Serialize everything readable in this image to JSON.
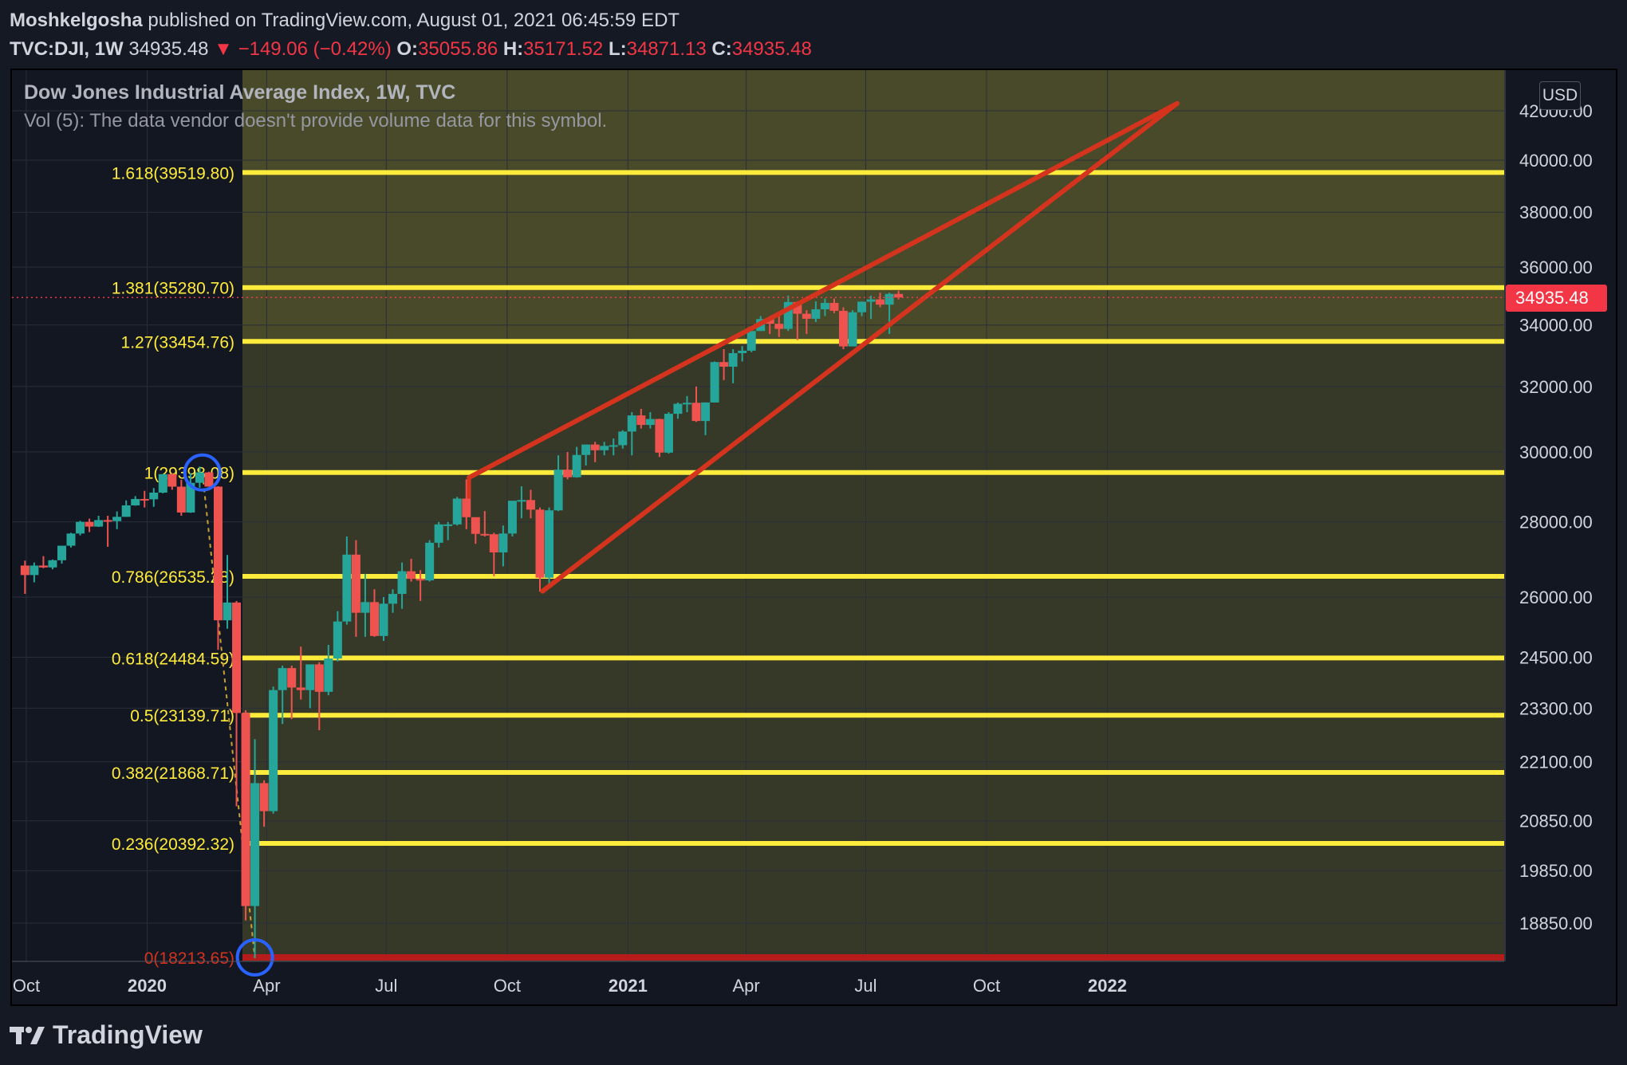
{
  "header": {
    "author": "Moshkelgosha",
    "published": "published on TradingView.com, August 01, 2021 06:45:59 EDT",
    "symbol": "TVC:DJI, 1W",
    "last": "34935.48",
    "change": "−149.06 (−0.42%)",
    "o_label": "O:",
    "o": "35055.86",
    "h_label": "H:",
    "h": "35171.52",
    "l_label": "L:",
    "l": "34871.13",
    "c_label": "C:",
    "c": "34935.48"
  },
  "legend": {
    "title": "Dow Jones Industrial Average Index, 1W, TVC",
    "volume_note": "Vol (5): The data vendor doesn't provide volume data for this symbol."
  },
  "currency": "USD",
  "last_price_tag": "34935.48",
  "footer": {
    "brand": "TradingView",
    "logo_icon": "tradingview-logo-icon"
  },
  "colors": {
    "up": "#26a69a",
    "down": "#ef5350",
    "fib": "#ffeb3b",
    "trend": "#d4331d",
    "zero": "#b71c1c",
    "circle": "#2962ff"
  },
  "chart_data": {
    "type": "candlestick",
    "title": "Dow Jones Industrial Average Index, 1W, TVC",
    "x_ticks": [
      "Oct",
      "2020",
      "Apr",
      "Jul",
      "Oct",
      "2021",
      "Apr",
      "Jul",
      "Oct",
      "2022"
    ],
    "y_ticks": [
      "42000.00",
      "40000.00",
      "38000.00",
      "36000.00",
      "34000.00",
      "32000.00",
      "30000.00",
      "28000.00",
      "26000.00",
      "24500.00",
      "23300.00",
      "22100.00",
      "20850.00",
      "19850.00",
      "18850.00"
    ],
    "y_scale": "log",
    "fibonacci": [
      {
        "label": "0(18213.65)",
        "price": 18213.65
      },
      {
        "label": "0.236(20392.32)",
        "price": 20392.32
      },
      {
        "label": "0.382(21868.71)",
        "price": 21868.71
      },
      {
        "label": "0.5(23139.71)",
        "price": 23139.71
      },
      {
        "label": "0.618(24484.59)",
        "price": 24484.59
      },
      {
        "label": "0.786(26535.28)",
        "price": 26535.28
      },
      {
        "label": "1(29398.08)",
        "price": 29398.08
      },
      {
        "label": "1.27(33454.76)",
        "price": 33454.76
      },
      {
        "label": "1.381(35280.70)",
        "price": 35280.7
      },
      {
        "label": "1.618(39519.80)",
        "price": 39519.8
      }
    ],
    "candles": [
      [
        "2019-09-30",
        26820,
        26950,
        26080,
        26570
      ],
      [
        "2019-10-07",
        26570,
        26900,
        26380,
        26820
      ],
      [
        "2019-10-14",
        26820,
        27070,
        26750,
        26770
      ],
      [
        "2019-10-21",
        26770,
        26980,
        26720,
        26960
      ],
      [
        "2019-10-28",
        26960,
        27350,
        26870,
        27350
      ],
      [
        "2019-11-04",
        27350,
        27700,
        27300,
        27680
      ],
      [
        "2019-11-11",
        27680,
        28030,
        27630,
        28000
      ],
      [
        "2019-11-18",
        28000,
        28090,
        27720,
        27870
      ],
      [
        "2019-11-25",
        27870,
        28170,
        27860,
        28050
      ],
      [
        "2019-12-02",
        28050,
        28170,
        27320,
        28020
      ],
      [
        "2019-12-09",
        28020,
        28290,
        27800,
        28140
      ],
      [
        "2019-12-16",
        28140,
        28600,
        28140,
        28460
      ],
      [
        "2019-12-23",
        28460,
        28720,
        28450,
        28640
      ],
      [
        "2019-12-30",
        28640,
        28870,
        28400,
        28630
      ],
      [
        "2020-01-06",
        28630,
        28950,
        28420,
        28820
      ],
      [
        "2020-01-13",
        28820,
        29350,
        28800,
        29350
      ],
      [
        "2020-01-20",
        29350,
        29370,
        28900,
        28990
      ],
      [
        "2020-01-27",
        28990,
        29190,
        28170,
        28260
      ],
      [
        "2020-02-03",
        28260,
        29380,
        28250,
        29100
      ],
      [
        "2020-02-10",
        29100,
        29570,
        28960,
        29400
      ],
      [
        "2020-02-17",
        29400,
        29420,
        28990,
        28990
      ],
      [
        "2020-02-24",
        28990,
        29000,
        24680,
        25410
      ],
      [
        "2020-03-02",
        25410,
        27100,
        25200,
        25860
      ],
      [
        "2020-03-09",
        25860,
        25900,
        21150,
        23190
      ],
      [
        "2020-03-16",
        23190,
        23250,
        18900,
        19170
      ],
      [
        "2020-03-23",
        19170,
        22600,
        18210,
        21640
      ],
      [
        "2020-03-30",
        21640,
        21700,
        20730,
        21050
      ],
      [
        "2020-04-06",
        21050,
        23800,
        21000,
        23720
      ],
      [
        "2020-04-13",
        23720,
        24300,
        22940,
        24240
      ],
      [
        "2020-04-20",
        24240,
        24300,
        23050,
        23780
      ],
      [
        "2020-04-27",
        23780,
        24760,
        23500,
        23720
      ],
      [
        "2020-05-04",
        23720,
        24300,
        23300,
        24330
      ],
      [
        "2020-05-11",
        24330,
        24380,
        22800,
        23680
      ],
      [
        "2020-05-18",
        23680,
        24800,
        23600,
        24470
      ],
      [
        "2020-05-25",
        24470,
        25640,
        24400,
        25380
      ],
      [
        "2020-06-01",
        25380,
        27600,
        25300,
        27110
      ],
      [
        "2020-06-08",
        27110,
        27500,
        25000,
        25600
      ],
      [
        "2020-06-15",
        25600,
        26600,
        25000,
        25870
      ],
      [
        "2020-06-22",
        25870,
        26200,
        25000,
        25020
      ],
      [
        "2020-06-29",
        25020,
        26000,
        24900,
        25830
      ],
      [
        "2020-07-06",
        25830,
        26200,
        25600,
        26080
      ],
      [
        "2020-07-13",
        26080,
        26900,
        25700,
        26670
      ],
      [
        "2020-07-20",
        26670,
        27000,
        26400,
        26470
      ],
      [
        "2020-07-27",
        26470,
        26700,
        25900,
        26430
      ],
      [
        "2020-08-03",
        26430,
        27500,
        26400,
        27430
      ],
      [
        "2020-08-10",
        27430,
        28000,
        27300,
        27930
      ],
      [
        "2020-08-17",
        27930,
        28000,
        27500,
        27930
      ],
      [
        "2020-08-24",
        27930,
        28700,
        27900,
        28650
      ],
      [
        "2020-08-31",
        28650,
        29200,
        27800,
        28130
      ],
      [
        "2020-09-07",
        28130,
        28100,
        27400,
        27670
      ],
      [
        "2020-09-14",
        27670,
        28300,
        27600,
        27660
      ],
      [
        "2020-09-21",
        27660,
        27700,
        26540,
        27170
      ],
      [
        "2020-09-28",
        27170,
        27900,
        26800,
        27680
      ],
      [
        "2020-10-05",
        27680,
        28500,
        27600,
        28590
      ],
      [
        "2020-10-12",
        28590,
        29000,
        28100,
        28610
      ],
      [
        "2020-10-19",
        28610,
        28900,
        28100,
        28340
      ],
      [
        "2020-10-26",
        28340,
        28400,
        26140,
        26500
      ],
      [
        "2020-11-02",
        26500,
        28400,
        26300,
        28320
      ],
      [
        "2020-11-09",
        28320,
        29900,
        28300,
        29480
      ],
      [
        "2020-11-16",
        29480,
        30000,
        29200,
        29260
      ],
      [
        "2020-11-23",
        29260,
        30150,
        29250,
        29910
      ],
      [
        "2020-11-30",
        29910,
        30200,
        29600,
        30220
      ],
      [
        "2020-12-07",
        30220,
        30300,
        29700,
        30050
      ],
      [
        "2020-12-14",
        30050,
        30300,
        29900,
        30180
      ],
      [
        "2020-12-21",
        30180,
        30400,
        29900,
        30200
      ],
      [
        "2020-12-28",
        30200,
        30650,
        30100,
        30610
      ],
      [
        "2021-01-04",
        30610,
        31200,
        29900,
        31100
      ],
      [
        "2021-01-11",
        31100,
        31300,
        30700,
        30810
      ],
      [
        "2021-01-18",
        30810,
        31200,
        30700,
        30990
      ],
      [
        "2021-01-25",
        30990,
        31000,
        29850,
        29980
      ],
      [
        "2021-02-01",
        29980,
        31200,
        29950,
        31150
      ],
      [
        "2021-02-08",
        31150,
        31500,
        31000,
        31460
      ],
      [
        "2021-02-15",
        31460,
        31700,
        31200,
        31490
      ],
      [
        "2021-02-22",
        31490,
        32000,
        30900,
        30930
      ],
      [
        "2021-03-01",
        30930,
        31500,
        30500,
        31500
      ],
      [
        "2021-03-08",
        31500,
        32800,
        31500,
        32780
      ],
      [
        "2021-03-15",
        32780,
        33200,
        32200,
        32630
      ],
      [
        "2021-03-22",
        32630,
        33200,
        32100,
        33070
      ],
      [
        "2021-03-29",
        33070,
        33300,
        32800,
        33150
      ],
      [
        "2021-04-05",
        33150,
        33800,
        33100,
        33800
      ],
      [
        "2021-04-12",
        33800,
        34300,
        33800,
        34200
      ],
      [
        "2021-04-19",
        34200,
        34300,
        33700,
        34040
      ],
      [
        "2021-04-26",
        34040,
        34300,
        33600,
        33870
      ],
      [
        "2021-05-03",
        33870,
        35000,
        33800,
        34780
      ],
      [
        "2021-05-10",
        34780,
        34800,
        33500,
        34380
      ],
      [
        "2021-05-17",
        34380,
        34500,
        33700,
        34210
      ],
      [
        "2021-05-24",
        34210,
        34800,
        34100,
        34530
      ],
      [
        "2021-05-31",
        34530,
        34900,
        34300,
        34750
      ],
      [
        "2021-06-07",
        34750,
        34900,
        34400,
        34480
      ],
      [
        "2021-06-14",
        34480,
        34600,
        33200,
        33290
      ],
      [
        "2021-06-21",
        33290,
        34500,
        33300,
        34430
      ],
      [
        "2021-06-28",
        34430,
        34800,
        34300,
        34790
      ],
      [
        "2021-07-05",
        34790,
        35000,
        34200,
        34870
      ],
      [
        "2021-07-12",
        34870,
        35100,
        34600,
        34690
      ],
      [
        "2021-07-19",
        34690,
        35100,
        33700,
        35060
      ],
      [
        "2021-07-26",
        35060,
        35170,
        34870,
        34935
      ]
    ],
    "trendlines": [
      {
        "from": [
          "2020-09-02",
          29250
        ],
        "to": [
          "2022-02-23",
          42300
        ]
      },
      {
        "from": [
          "2020-10-28",
          26150
        ],
        "to": [
          "2022-02-23",
          42300
        ]
      }
    ],
    "last_price": 34935.48
  }
}
